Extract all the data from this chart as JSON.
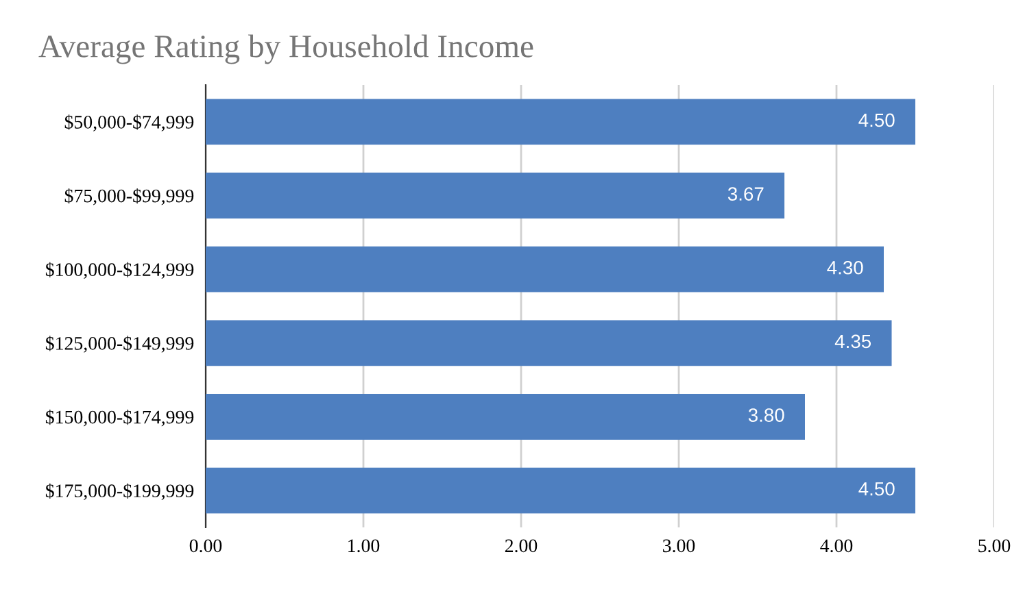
{
  "chart_data": {
    "type": "bar",
    "orientation": "horizontal",
    "title": "Average Rating by Household Income",
    "categories": [
      "$50,000-$74,999",
      "$75,000-$99,999",
      "$100,000-$124,999",
      "$125,000-$149,999",
      "$150,000-$174,999",
      "$175,000-$199,999"
    ],
    "values": [
      4.5,
      3.67,
      4.3,
      4.35,
      3.8,
      4.5
    ],
    "value_labels": [
      "4.50",
      "3.67",
      "4.30",
      "4.35",
      "3.80",
      "4.50"
    ],
    "color": "#4e7fc0",
    "xlim": [
      0,
      5
    ],
    "xticks": [
      {
        "value": 0,
        "label": "0.00"
      },
      {
        "value": 1,
        "label": "1.00"
      },
      {
        "value": 2,
        "label": "2.00"
      },
      {
        "value": 3,
        "label": "3.00"
      },
      {
        "value": 4,
        "label": "4.00"
      },
      {
        "value": 5,
        "label": "5.00"
      }
    ],
    "grid": "x",
    "legend": false
  }
}
